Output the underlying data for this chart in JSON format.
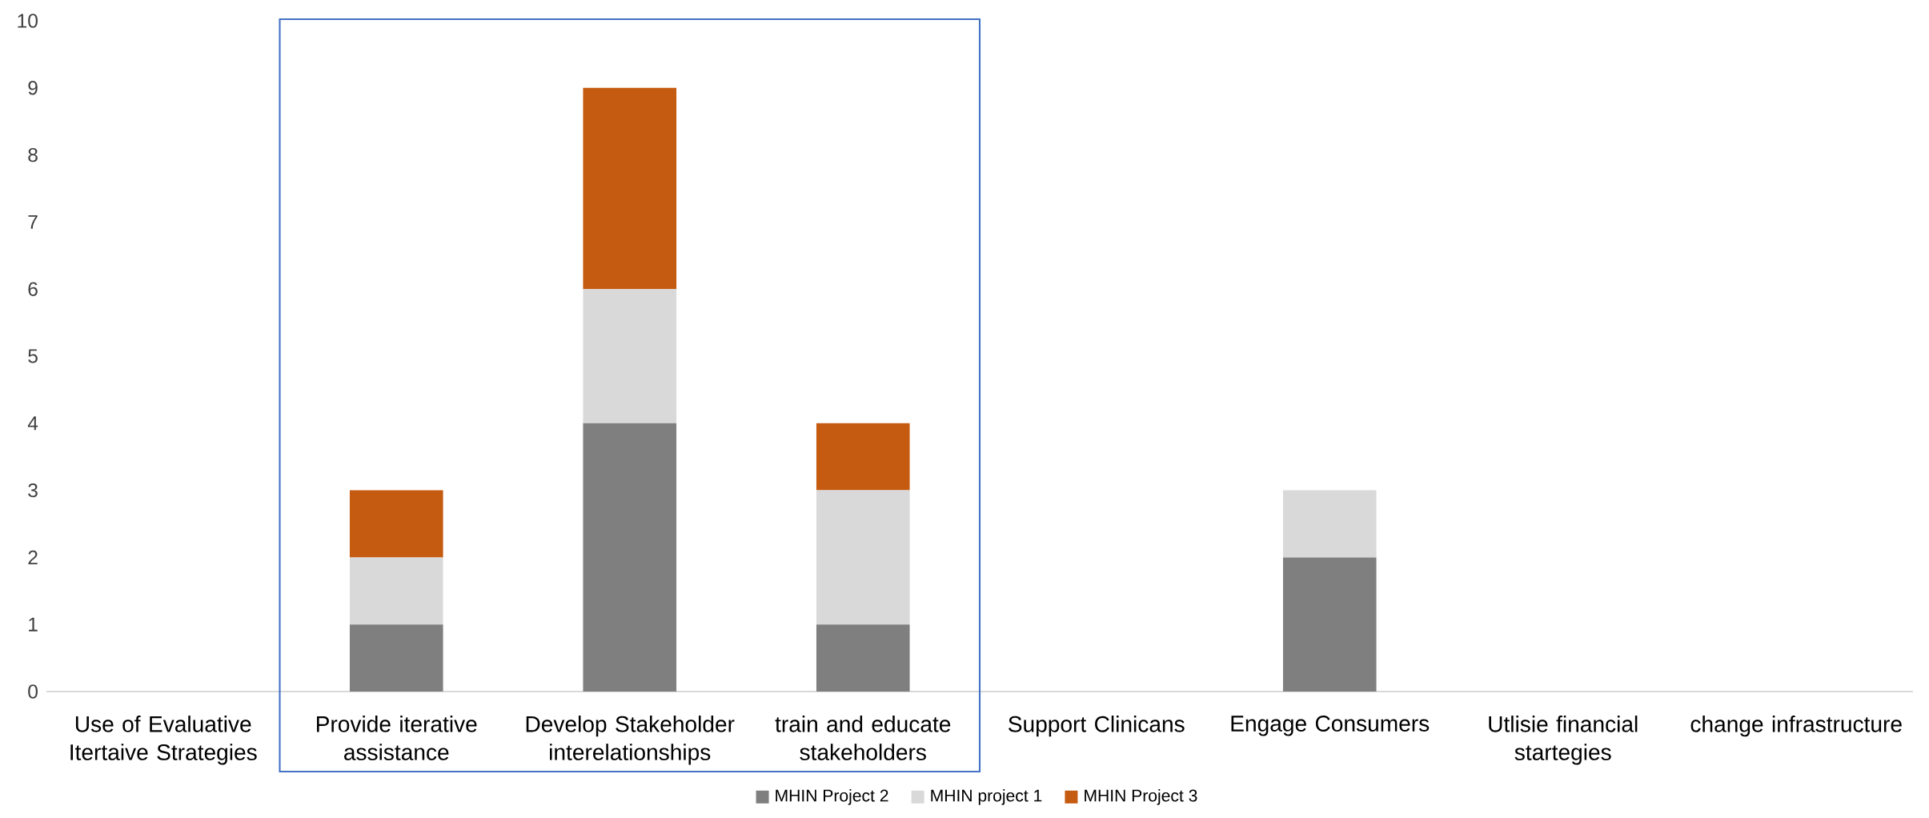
{
  "chart_data": {
    "type": "bar",
    "stacked": true,
    "categories": [
      "Use of Evaluative Itertaive Strategies",
      "Provide iterative assistance",
      "Develop Stakeholder interelationships",
      "train and educate stakeholders",
      "Support Clinicans",
      "Engage Consumers",
      "Utlisie financial startegies",
      "change infrastructure"
    ],
    "series": [
      {
        "name": "MHIN Project 2",
        "color": "#7f7f7f",
        "values": [
          0,
          1,
          4,
          1,
          0,
          2,
          0,
          0
        ]
      },
      {
        "name": "MHIN project 1",
        "color": "#d9d9d9",
        "values": [
          0,
          1,
          2,
          2,
          0,
          1,
          0,
          0
        ]
      },
      {
        "name": "MHIN Project 3",
        "color": "#c55a11",
        "values": [
          0,
          1,
          3,
          1,
          0,
          0,
          0,
          0
        ]
      }
    ],
    "ylim": [
      0,
      10
    ],
    "yticks": [
      0,
      1,
      2,
      3,
      4,
      5,
      6,
      7,
      8,
      9,
      10
    ],
    "grid": false,
    "legend": "bottom"
  }
}
